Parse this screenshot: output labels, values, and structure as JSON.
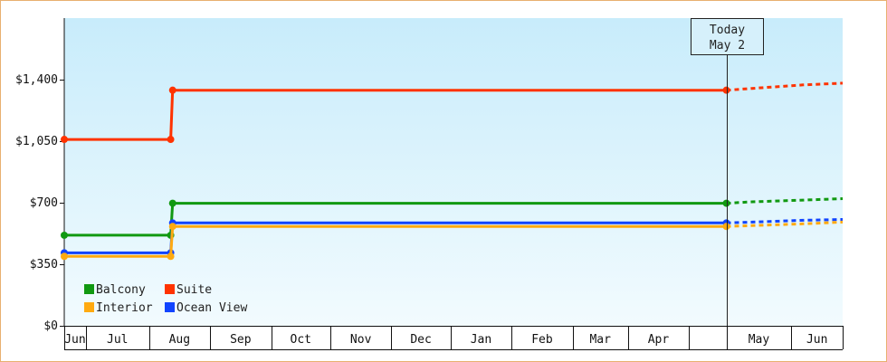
{
  "chart_data": {
    "type": "line",
    "title": "",
    "xlabel": "",
    "ylabel": "",
    "ylim": [
      0,
      1750
    ],
    "y_ticks": [
      0,
      350,
      700,
      1050,
      1400
    ],
    "y_tick_labels": [
      "$0",
      "$350",
      "$700",
      "$1,050",
      "$1,400"
    ],
    "x_range": [
      "2013-05-31",
      "2014-06-30"
    ],
    "month_labels": [
      {
        "label": "Jun",
        "start": "2013-05-31",
        "end": "2013-06-11"
      },
      {
        "label": "Jul",
        "start": "2013-06-11",
        "end": "2013-07-13"
      },
      {
        "label": "Aug",
        "start": "2013-07-13",
        "end": "2013-08-13"
      },
      {
        "label": "Sep",
        "start": "2013-08-13",
        "end": "2013-09-13"
      },
      {
        "label": "Oct",
        "start": "2013-09-13",
        "end": "2013-10-13"
      },
      {
        "label": "Nov",
        "start": "2013-10-13",
        "end": "2013-11-13"
      },
      {
        "label": "Dec",
        "start": "2013-11-13",
        "end": "2013-12-13"
      },
      {
        "label": "Jan",
        "start": "2013-12-13",
        "end": "2014-01-13"
      },
      {
        "label": "Feb",
        "start": "2014-01-13",
        "end": "2014-02-13"
      },
      {
        "label": "Mar",
        "start": "2014-02-13",
        "end": "2014-03-13"
      },
      {
        "label": "Apr",
        "start": "2014-03-13",
        "end": "2014-04-13"
      },
      {
        "label": "May",
        "start": "2014-05-02",
        "end": "2014-06-04"
      },
      {
        "label": "Jun",
        "start": "2014-06-04",
        "end": "2014-06-30"
      }
    ],
    "today": {
      "date": "2014-05-02",
      "label_line1": "Today",
      "label_line2": "May 2"
    },
    "legend_position": "bottom-left",
    "grid": false,
    "series": [
      {
        "name": "Suite",
        "color": "#ff3300",
        "points": [
          {
            "x": "2013-05-31",
            "y": 1060
          },
          {
            "x": "2013-07-24",
            "y": 1060
          },
          {
            "x": "2013-07-25",
            "y": 1340
          },
          {
            "x": "2014-05-02",
            "y": 1340
          }
        ],
        "forecast": [
          {
            "x": "2014-05-02",
            "y": 1340
          },
          {
            "x": "2014-05-15",
            "y": 1350
          },
          {
            "x": "2014-06-10",
            "y": 1370
          },
          {
            "x": "2014-06-30",
            "y": 1380
          }
        ]
      },
      {
        "name": "Balcony",
        "color": "#119911",
        "points": [
          {
            "x": "2013-05-31",
            "y": 515
          },
          {
            "x": "2013-07-24",
            "y": 515
          },
          {
            "x": "2013-07-25",
            "y": 697
          },
          {
            "x": "2014-05-02",
            "y": 697
          }
        ],
        "forecast": [
          {
            "x": "2014-05-02",
            "y": 697
          },
          {
            "x": "2014-05-15",
            "y": 705
          },
          {
            "x": "2014-06-10",
            "y": 715
          },
          {
            "x": "2014-06-30",
            "y": 723
          }
        ]
      },
      {
        "name": "Ocean View",
        "color": "#1144ff",
        "points": [
          {
            "x": "2013-05-31",
            "y": 415
          },
          {
            "x": "2013-07-24",
            "y": 415
          },
          {
            "x": "2013-07-25",
            "y": 585
          },
          {
            "x": "2014-05-02",
            "y": 585
          }
        ],
        "forecast": [
          {
            "x": "2014-05-02",
            "y": 585
          },
          {
            "x": "2014-05-15",
            "y": 590
          },
          {
            "x": "2014-06-10",
            "y": 600
          },
          {
            "x": "2014-06-30",
            "y": 605
          }
        ]
      },
      {
        "name": "Interior",
        "color": "#ffaa11",
        "points": [
          {
            "x": "2013-05-31",
            "y": 395
          },
          {
            "x": "2013-07-24",
            "y": 395
          },
          {
            "x": "2013-07-25",
            "y": 565
          },
          {
            "x": "2014-05-02",
            "y": 565
          }
        ],
        "forecast": [
          {
            "x": "2014-05-02",
            "y": 565
          },
          {
            "x": "2014-05-15",
            "y": 570
          },
          {
            "x": "2014-06-10",
            "y": 580
          },
          {
            "x": "2014-06-30",
            "y": 590
          }
        ]
      }
    ],
    "legend": [
      {
        "name": "Balcony",
        "color": "#119911"
      },
      {
        "name": "Suite",
        "color": "#ff3300"
      },
      {
        "name": "Interior",
        "color": "#ffaa11"
      },
      {
        "name": "Ocean View",
        "color": "#1144ff"
      }
    ]
  }
}
